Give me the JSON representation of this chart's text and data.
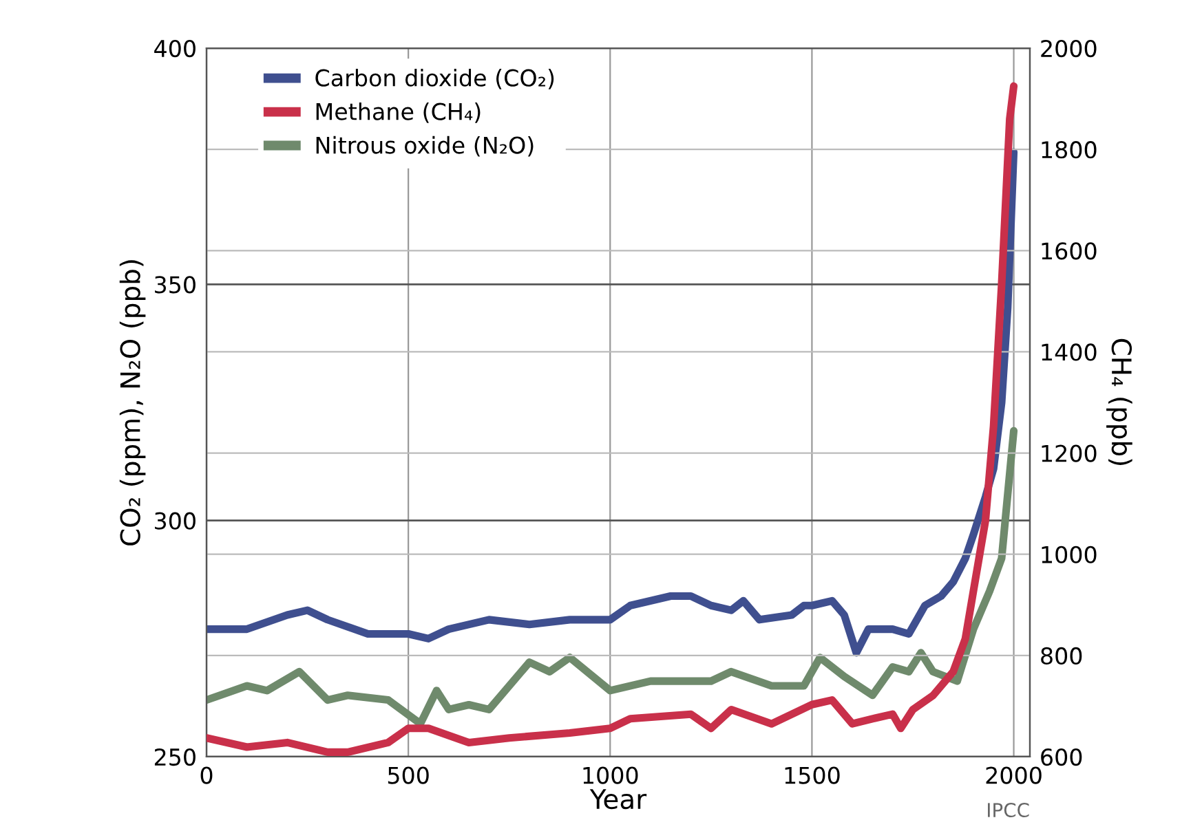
{
  "chart_data": {
    "type": "line",
    "xlabel": "Year",
    "ylabel": "CO₂ (ppm), N₂O (ppb)",
    "y2label": "CH₄ (ppb)",
    "annotations": [
      "IPCC"
    ],
    "xlim": [
      0,
      2040
    ],
    "xticks": [
      0,
      500,
      1000,
      1500,
      2000
    ],
    "ylim": [
      250,
      400
    ],
    "yticks": [
      250,
      300,
      350,
      400
    ],
    "y2lim": [
      600,
      2000
    ],
    "y2ticks": [
      600,
      800,
      1000,
      1200,
      1400,
      1600,
      1800,
      2000
    ],
    "grid": true,
    "legend": "top left",
    "series": [
      {
        "name": "Carbon dioxide (CO₂)",
        "color": "#3f4f8f",
        "x": [
          0,
          100,
          200,
          250,
          300,
          400,
          500,
          550,
          600,
          700,
          800,
          900,
          1000,
          1050,
          1150,
          1200,
          1250,
          1300,
          1330,
          1370,
          1450,
          1480,
          1500,
          1550,
          1580,
          1610,
          1640,
          1700,
          1740,
          1780,
          1820,
          1850,
          1880,
          1900,
          1930,
          1950,
          1970,
          1985,
          2000
        ],
        "values": [
          277,
          277,
          280,
          281,
          279,
          276,
          276,
          275,
          277,
          279,
          278,
          279,
          279,
          282,
          284,
          284,
          282,
          281,
          283,
          279,
          280,
          282,
          282,
          283,
          280,
          272,
          277,
          277,
          276,
          282,
          284,
          287,
          292,
          297,
          305,
          311,
          325,
          345,
          378
        ]
      },
      {
        "name": "Methane (CH₄)",
        "color": "#c9304a",
        "axis": "y2",
        "x": [
          0,
          100,
          200,
          300,
          350,
          450,
          500,
          550,
          650,
          750,
          900,
          1000,
          1050,
          1200,
          1250,
          1300,
          1400,
          1500,
          1550,
          1600,
          1650,
          1700,
          1720,
          1750,
          1800,
          1850,
          1880,
          1900,
          1930,
          1950,
          1970,
          1990,
          2000
        ],
        "values": [
          637,
          619,
          628,
          609,
          609,
          628,
          656,
          656,
          628,
          637,
          647,
          656,
          675,
          684,
          656,
          693,
          665,
          703,
          712,
          665,
          675,
          684,
          656,
          693,
          721,
          768,
          833,
          927,
          1067,
          1253,
          1533,
          1860,
          1925
        ]
      },
      {
        "name": "Nitrous oxide (N₂O)",
        "color": "#6f8a6c",
        "x": [
          0,
          100,
          150,
          230,
          300,
          350,
          450,
          530,
          570,
          600,
          650,
          700,
          800,
          850,
          900,
          1000,
          1100,
          1200,
          1250,
          1300,
          1400,
          1480,
          1520,
          1580,
          1650,
          1700,
          1740,
          1770,
          1800,
          1860,
          1900,
          1940,
          1970,
          2000
        ],
        "values": [
          262,
          265,
          264,
          268,
          262,
          263,
          262,
          257,
          264,
          260,
          261,
          260,
          270,
          268,
          271,
          264,
          266,
          266,
          266,
          268,
          265,
          265,
          271,
          267,
          263,
          269,
          268,
          272,
          268,
          266,
          277,
          285,
          292,
          319
        ]
      }
    ]
  }
}
